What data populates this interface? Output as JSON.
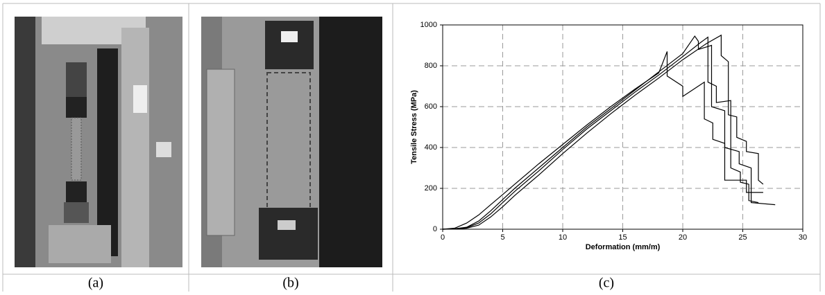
{
  "captions": [
    "(a)",
    "(b)",
    "(c)"
  ],
  "chart_data": {
    "type": "line",
    "xlabel": "Deformation (mm/m)",
    "ylabel": "Tensile Stress (MPa)",
    "xlim": [
      0,
      30
    ],
    "xticks": [
      0,
      5,
      10,
      15,
      20,
      25,
      30
    ],
    "ylim": [
      0,
      1000
    ],
    "yticks": [
      0,
      200,
      400,
      600,
      800,
      1000
    ],
    "grid": true,
    "series": [
      {
        "color": "#000000",
        "x": [
          0,
          1,
          2,
          3,
          4,
          5,
          6,
          8,
          10,
          12,
          14,
          16,
          18,
          18.7,
          18.7,
          20,
          20,
          21.8,
          21.8,
          22.5,
          22.5,
          23.5,
          23.5,
          25.3,
          25.3,
          26.7
        ],
        "values": [
          0,
          5,
          30,
          70,
          120,
          170,
          220,
          320,
          415,
          510,
          600,
          685,
          765,
          870,
          750,
          700,
          650,
          720,
          540,
          520,
          440,
          420,
          240,
          240,
          180,
          180
        ]
      },
      {
        "color": "#000000",
        "x": [
          0,
          1,
          2,
          3,
          4,
          5,
          6,
          8,
          10,
          12,
          14,
          16,
          18,
          20,
          21,
          21.3,
          21.3,
          22.4,
          22.4,
          23.5,
          23.5,
          24.7,
          24.7,
          25.7,
          25.7,
          27.7
        ],
        "values": [
          0,
          2,
          10,
          40,
          90,
          145,
          200,
          300,
          400,
          500,
          590,
          680,
          770,
          860,
          945,
          920,
          880,
          900,
          600,
          580,
          400,
          380,
          320,
          300,
          130,
          120
        ]
      },
      {
        "color": "#000000",
        "x": [
          0,
          1,
          2,
          3,
          4,
          5,
          6,
          8,
          10,
          12,
          14,
          16,
          18,
          20,
          22,
          23.2,
          23.2,
          23.8,
          23.8,
          24.5,
          24.5,
          25.3,
          25.3,
          26.3,
          26.3,
          26.7
        ],
        "values": [
          0,
          1,
          5,
          20,
          60,
          110,
          165,
          265,
          370,
          470,
          565,
          655,
          740,
          830,
          910,
          950,
          850,
          820,
          560,
          550,
          450,
          430,
          380,
          370,
          240,
          220
        ]
      },
      {
        "color": "#000000",
        "x": [
          0,
          1,
          2,
          3,
          4,
          5,
          6,
          8,
          10,
          12,
          14,
          16,
          18,
          20,
          21.5,
          22.1,
          22.1,
          22.8,
          22.8,
          24,
          24,
          24.8,
          24.8,
          25.5,
          25.5,
          26.3
        ],
        "values": [
          0,
          2,
          8,
          30,
          75,
          130,
          185,
          285,
          390,
          490,
          580,
          670,
          755,
          845,
          915,
          940,
          720,
          700,
          620,
          630,
          300,
          280,
          230,
          220,
          140,
          130
        ]
      }
    ]
  }
}
